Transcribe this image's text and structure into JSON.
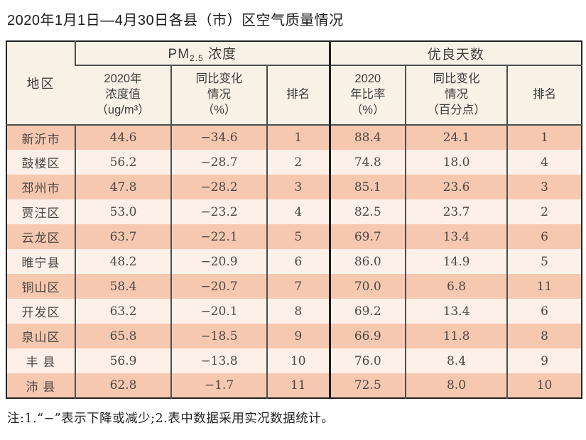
{
  "title": "2020年1月1日—4月30日各县（市）区空气质量情况",
  "table": {
    "region_header": "地区",
    "pm25_group": {
      "prefix": "PM",
      "sub": "2.5",
      "suffix": " 浓度"
    },
    "good_days_group": "优良天数",
    "subheaders": [
      "2020年\n浓度值\n（ug/m³）",
      "同比变化\n情况\n（%）",
      "排名",
      "2020\n年比率\n（%）",
      "同比变化\n情况\n（百分点）",
      "排名"
    ],
    "rows": [
      [
        "新沂市",
        "44.6",
        "−34.6",
        "1",
        "88.4",
        "24.1",
        "1"
      ],
      [
        "鼓楼区",
        "56.2",
        "−28.7",
        "2",
        "74.8",
        "18.0",
        "4"
      ],
      [
        "邳州市",
        "47.8",
        "−28.2",
        "3",
        "85.1",
        "23.6",
        "3"
      ],
      [
        "贾汪区",
        "53.0",
        "−23.2",
        "4",
        "82.5",
        "23.7",
        "2"
      ],
      [
        "云龙区",
        "63.7",
        "−22.1",
        "5",
        "69.7",
        "13.4",
        "6"
      ],
      [
        "睢宁县",
        "48.2",
        "−20.9",
        "6",
        "86.0",
        "14.9",
        "5"
      ],
      [
        "铜山区",
        "58.4",
        "−20.7",
        "7",
        "70.0",
        "6.8",
        "11"
      ],
      [
        "开发区",
        "63.2",
        "−20.1",
        "8",
        "69.2",
        "13.4",
        "6"
      ],
      [
        "泉山区",
        "65.8",
        "−18.5",
        "9",
        "66.9",
        "11.8",
        "8"
      ],
      [
        "丰 县",
        "56.9",
        "−13.8",
        "10",
        "76.0",
        "8.4",
        "9"
      ],
      [
        "沛 县",
        "62.8",
        "−1.7",
        "11",
        "72.5",
        "8.0",
        "10"
      ]
    ]
  },
  "note": "注:1.“−”表示下降或减少;2.表中数据采用实况数据统计。",
  "colors": {
    "row_stripe": "#f7c8b0",
    "row_alt": "#fcf0e9",
    "header_bg": "#f8f1e6",
    "grid": "#4d4d4d",
    "outer_border": "#222222"
  }
}
